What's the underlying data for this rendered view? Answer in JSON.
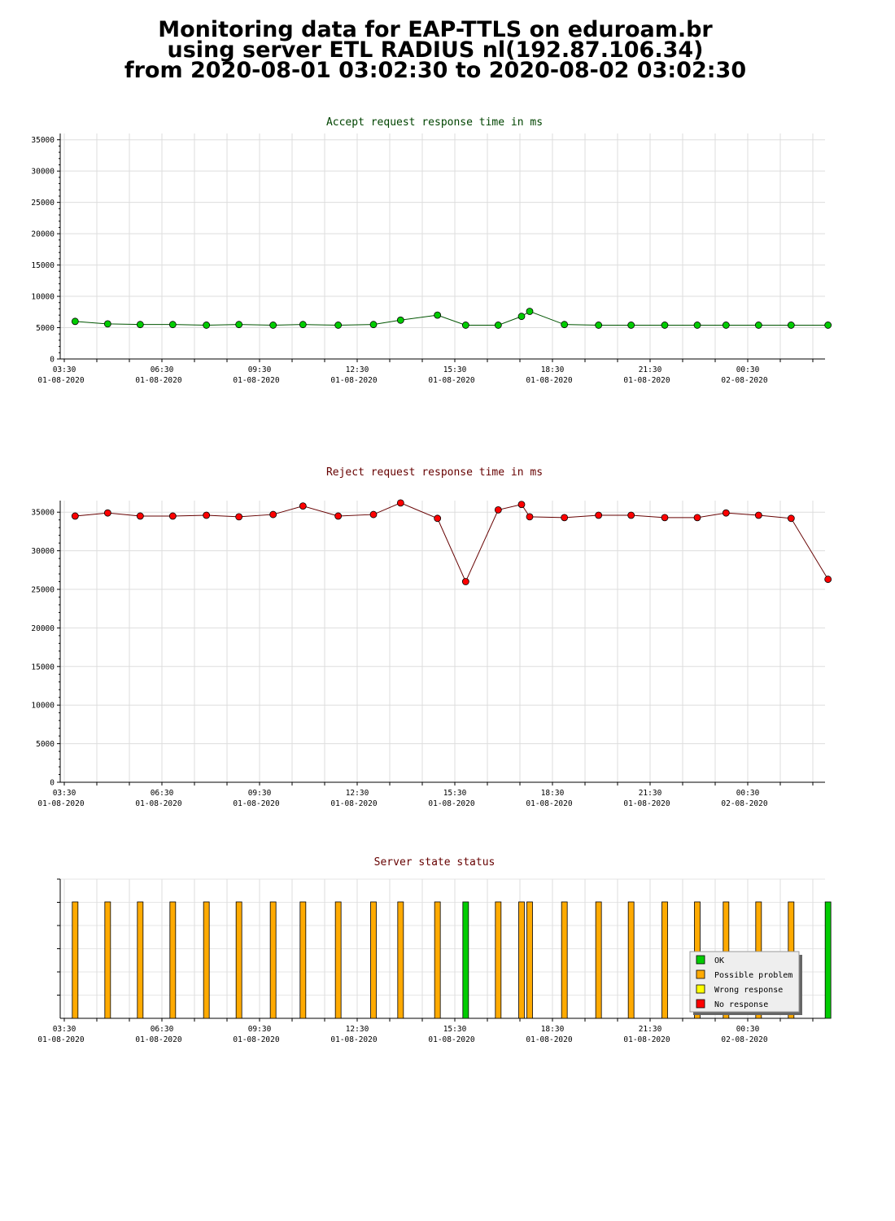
{
  "title": {
    "line1": "Monitoring data for EAP-TTLS on eduroam.br",
    "line2": "using server ETL RADIUS nl(192.87.106.34)",
    "line3": "from 2020-08-01 03:02:30 to 2020-08-02 03:02:30"
  },
  "colors": {
    "accept": "#00cc00",
    "accept_line": "#005500",
    "reject": "#ff0000",
    "reject_line": "#660000",
    "title_accept": "#004400",
    "title_reject": "#660000",
    "ok": "#00cc00",
    "possible_problem": "#ffaa00",
    "wrong_response": "#ffff00",
    "no_response": "#ff0000",
    "grid": "#dddddd"
  },
  "x_ticks": [
    {
      "time": "03:30",
      "date": "01-08-2020"
    },
    {
      "time": "06:30",
      "date": "01-08-2020"
    },
    {
      "time": "09:30",
      "date": "01-08-2020"
    },
    {
      "time": "12:30",
      "date": "01-08-2020"
    },
    {
      "time": "15:30",
      "date": "01-08-2020"
    },
    {
      "time": "18:30",
      "date": "01-08-2020"
    },
    {
      "time": "21:30",
      "date": "01-08-2020"
    },
    {
      "time": "00:30",
      "date": "02-08-2020"
    }
  ],
  "chart_data": [
    {
      "type": "line",
      "title": "Accept request response time in ms",
      "xlabel": "",
      "ylabel": "",
      "xlim": [
        "2020-08-01 03:30",
        "2020-08-02 03:00"
      ],
      "ylim": [
        0,
        36000
      ],
      "yticks": [
        "0",
        "5000",
        "10000",
        "15000",
        "20000",
        "25000",
        "30000",
        "35000"
      ],
      "grid": true,
      "series": [
        {
          "x": [
            "2020-08-01 03:50",
            "2020-08-01 04:50",
            "2020-08-01 05:50",
            "2020-08-01 06:50",
            "2020-08-01 07:52",
            "2020-08-01 08:52",
            "2020-08-01 09:55",
            "2020-08-01 10:50",
            "2020-08-01 11:55",
            "2020-08-01 13:00",
            "2020-08-01 13:50",
            "2020-08-01 14:58",
            "2020-08-01 15:50",
            "2020-08-01 16:50",
            "2020-08-01 17:33",
            "2020-08-01 17:48",
            "2020-08-01 18:52",
            "2020-08-01 19:55",
            "2020-08-01 20:55",
            "2020-08-01 21:57",
            "2020-08-01 22:57",
            "2020-08-01 23:50",
            "2020-08-02 00:50",
            "2020-08-02 01:50",
            "2020-08-02 02:58"
          ],
          "values": [
            6000,
            5600,
            5500,
            5500,
            5400,
            5500,
            5400,
            5500,
            5400,
            5500,
            6200,
            7000,
            5400,
            5400,
            6800,
            7600,
            5500,
            5400,
            5400,
            5400,
            5400,
            5400,
            5400,
            5400,
            5400
          ]
        }
      ]
    },
    {
      "type": "line",
      "title": "Reject request response time in ms",
      "xlabel": "",
      "ylabel": "",
      "xlim": [
        "2020-08-01 03:30",
        "2020-08-02 03:00"
      ],
      "ylim": [
        0,
        36500
      ],
      "yticks": [
        "0",
        "5000",
        "10000",
        "15000",
        "20000",
        "25000",
        "30000",
        "35000"
      ],
      "grid": true,
      "series": [
        {
          "x": [
            "2020-08-01 03:50",
            "2020-08-01 04:50",
            "2020-08-01 05:50",
            "2020-08-01 06:50",
            "2020-08-01 07:52",
            "2020-08-01 08:52",
            "2020-08-01 09:55",
            "2020-08-01 10:50",
            "2020-08-01 11:55",
            "2020-08-01 13:00",
            "2020-08-01 13:50",
            "2020-08-01 14:58",
            "2020-08-01 15:50",
            "2020-08-01 16:50",
            "2020-08-01 17:33",
            "2020-08-01 17:48",
            "2020-08-01 18:52",
            "2020-08-01 19:55",
            "2020-08-01 20:55",
            "2020-08-01 21:57",
            "2020-08-01 22:57",
            "2020-08-01 23:50",
            "2020-08-02 00:50",
            "2020-08-02 01:50",
            "2020-08-02 02:58"
          ],
          "values": [
            34500,
            34900,
            34500,
            34500,
            34600,
            34400,
            34700,
            35800,
            34500,
            34700,
            36200,
            34200,
            26000,
            35300,
            36000,
            34400,
            34300,
            34600,
            34600,
            34300,
            34300,
            34900,
            34600,
            34200,
            26300
          ]
        }
      ]
    },
    {
      "type": "bar",
      "title": "Server state status",
      "xlim": [
        "2020-08-01 03:30",
        "2020-08-02 03:00"
      ],
      "legend_position": "bottom-right",
      "legend": [
        {
          "name": "OK",
          "color": "#00cc00"
        },
        {
          "name": "Possible problem",
          "color": "#ffaa00"
        },
        {
          "name": "Wrong response",
          "color": "#ffff00"
        },
        {
          "name": "No response",
          "color": "#ff0000"
        }
      ],
      "x": [
        "2020-08-01 03:50",
        "2020-08-01 04:50",
        "2020-08-01 05:50",
        "2020-08-01 06:50",
        "2020-08-01 07:52",
        "2020-08-01 08:52",
        "2020-08-01 09:55",
        "2020-08-01 10:50",
        "2020-08-01 11:55",
        "2020-08-01 13:00",
        "2020-08-01 13:50",
        "2020-08-01 14:58",
        "2020-08-01 15:50",
        "2020-08-01 16:50",
        "2020-08-01 17:33",
        "2020-08-01 17:48",
        "2020-08-01 18:52",
        "2020-08-01 19:55",
        "2020-08-01 20:55",
        "2020-08-01 21:57",
        "2020-08-01 22:57",
        "2020-08-01 23:50",
        "2020-08-02 00:50",
        "2020-08-02 01:50",
        "2020-08-02 02:58"
      ],
      "states": [
        "Possible problem",
        "Possible problem",
        "Possible problem",
        "Possible problem",
        "Possible problem",
        "Possible problem",
        "Possible problem",
        "Possible problem",
        "Possible problem",
        "Possible problem",
        "Possible problem",
        "Possible problem",
        "OK",
        "Possible problem",
        "Possible problem",
        "Possible problem",
        "Possible problem",
        "Possible problem",
        "Possible problem",
        "Possible problem",
        "Possible problem",
        "Possible problem",
        "Possible problem",
        "Possible problem",
        "OK"
      ]
    }
  ]
}
